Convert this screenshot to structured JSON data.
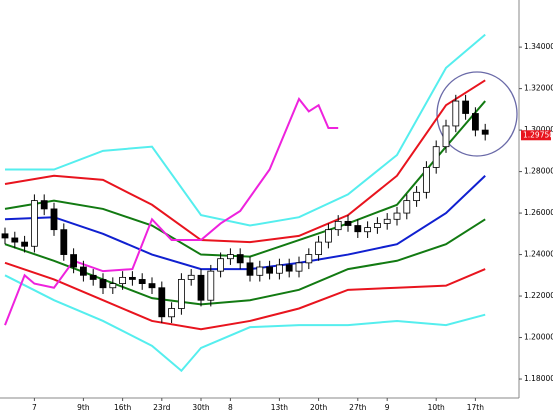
{
  "chart_data": {
    "type": "candlestick",
    "categories": [
      null,
      null,
      null,
      "7",
      null,
      null,
      null,
      null,
      "9th",
      null,
      null,
      null,
      "16th",
      null,
      null,
      null,
      "23rd",
      null,
      null,
      null,
      "30th",
      null,
      null,
      "8",
      null,
      null,
      null,
      null,
      "13th",
      null,
      null,
      null,
      "20th",
      null,
      null,
      null,
      "27th",
      null,
      null,
      "9",
      null,
      null,
      null,
      null,
      "10th",
      null,
      null,
      null,
      "17th",
      null
    ],
    "open": [
      1.25,
      1.248,
      1.246,
      1.244,
      1.266,
      1.262,
      1.252,
      1.24,
      1.234,
      1.23,
      1.228,
      1.224,
      1.226,
      1.229,
      1.228,
      1.226,
      1.224,
      1.21,
      1.214,
      1.228,
      1.23,
      1.218,
      1.232,
      1.238,
      1.24,
      1.236,
      1.23,
      1.234,
      1.231,
      1.235,
      1.232,
      1.236,
      1.24,
      1.246,
      1.252,
      1.256,
      1.254,
      1.251,
      1.253,
      1.255,
      1.257,
      1.26,
      1.266,
      1.27,
      1.282,
      1.292,
      1.302,
      1.314,
      1.308,
      1.3
    ],
    "high": [
      1.253,
      1.251,
      1.249,
      1.269,
      1.269,
      1.265,
      1.255,
      1.243,
      1.237,
      1.233,
      1.231,
      1.229,
      1.232,
      1.232,
      1.231,
      1.229,
      1.227,
      1.217,
      1.231,
      1.233,
      1.233,
      1.235,
      1.241,
      1.243,
      1.243,
      1.239,
      1.237,
      1.237,
      1.238,
      1.238,
      1.239,
      1.243,
      1.249,
      1.255,
      1.259,
      1.259,
      1.257,
      1.256,
      1.258,
      1.26,
      1.263,
      1.269,
      1.273,
      1.285,
      1.295,
      1.305,
      1.317,
      1.317,
      1.311,
      1.303
    ],
    "low": [
      1.245,
      1.243,
      1.241,
      1.241,
      1.259,
      1.249,
      1.237,
      1.231,
      1.227,
      1.225,
      1.221,
      1.221,
      1.223,
      1.225,
      1.223,
      1.221,
      1.207,
      1.207,
      1.211,
      1.225,
      1.215,
      1.215,
      1.229,
      1.235,
      1.233,
      1.227,
      1.227,
      1.228,
      1.228,
      1.229,
      1.229,
      1.233,
      1.237,
      1.243,
      1.249,
      1.251,
      1.248,
      1.248,
      1.25,
      1.252,
      1.254,
      1.257,
      1.263,
      1.267,
      1.279,
      1.289,
      1.299,
      1.305,
      1.297,
      1.295
    ],
    "close": [
      1.248,
      1.246,
      1.244,
      1.266,
      1.262,
      1.252,
      1.24,
      1.234,
      1.23,
      1.228,
      1.224,
      1.226,
      1.229,
      1.228,
      1.226,
      1.224,
      1.21,
      1.214,
      1.228,
      1.23,
      1.218,
      1.232,
      1.238,
      1.24,
      1.236,
      1.23,
      1.234,
      1.231,
      1.235,
      1.232,
      1.236,
      1.24,
      1.246,
      1.252,
      1.256,
      1.254,
      1.251,
      1.253,
      1.255,
      1.257,
      1.26,
      1.266,
      1.27,
      1.282,
      1.292,
      1.302,
      1.314,
      1.308,
      1.3,
      1.298
    ],
    "up_color": "#ffffff",
    "down_color": "#000000",
    "lines": [
      {
        "color": "#55eeee",
        "x": [
          0,
          5,
          10,
          15,
          20,
          25,
          30,
          35,
          40,
          45,
          49
        ],
        "values": [
          1.281,
          1.281,
          1.29,
          1.292,
          1.259,
          1.254,
          1.258,
          1.269,
          1.288,
          1.33,
          1.346
        ]
      },
      {
        "color": "#e8141e",
        "x": [
          0,
          5,
          10,
          15,
          20,
          25,
          30,
          35,
          40,
          45,
          49
        ],
        "values": [
          1.274,
          1.278,
          1.276,
          1.264,
          1.247,
          1.246,
          1.249,
          1.259,
          1.278,
          1.312,
          1.324
        ]
      },
      {
        "color": "#127a12",
        "x": [
          0,
          5,
          10,
          15,
          20,
          25,
          30,
          35,
          40,
          45,
          49
        ],
        "values": [
          1.262,
          1.266,
          1.262,
          1.254,
          1.24,
          1.239,
          1.247,
          1.255,
          1.264,
          1.292,
          1.314
        ]
      },
      {
        "color": "#1020d0",
        "x": [
          0,
          5,
          10,
          15,
          20,
          25,
          30,
          35,
          40,
          45,
          49
        ],
        "values": [
          1.257,
          1.258,
          1.25,
          1.24,
          1.233,
          1.233,
          1.236,
          1.24,
          1.245,
          1.26,
          1.278
        ]
      },
      {
        "color": "#127a12",
        "x": [
          0,
          5,
          10,
          15,
          20,
          25,
          30,
          35,
          40,
          45,
          49
        ],
        "values": [
          1.245,
          1.237,
          1.228,
          1.219,
          1.216,
          1.218,
          1.223,
          1.233,
          1.237,
          1.245,
          1.257
        ]
      },
      {
        "color": "#e8141e",
        "x": [
          0,
          5,
          10,
          15,
          20,
          25,
          30,
          35,
          40,
          45,
          49
        ],
        "values": [
          1.236,
          1.228,
          1.218,
          1.208,
          1.204,
          1.208,
          1.214,
          1.223,
          1.224,
          1.225,
          1.233
        ]
      },
      {
        "color": "#55eeee",
        "x": [
          0,
          5,
          10,
          15,
          18,
          20,
          25,
          30,
          35,
          40,
          45,
          49
        ],
        "values": [
          1.23,
          1.218,
          1.208,
          1.196,
          1.184,
          1.195,
          1.205,
          1.206,
          1.206,
          1.208,
          1.206,
          1.211
        ]
      },
      {
        "color": "#ee22dd",
        "x": [
          0,
          2,
          3,
          5,
          7,
          10,
          13,
          15,
          17,
          20,
          22,
          24,
          27,
          30,
          31,
          32,
          33,
          34
        ],
        "values": [
          1.206,
          1.23,
          1.226,
          1.224,
          1.237,
          1.232,
          1.233,
          1.257,
          1.247,
          1.247,
          1.255,
          1.261,
          1.281,
          1.315,
          1.309,
          1.312,
          1.301,
          1.301
        ]
      }
    ],
    "last_price": {
      "value": 1.2975,
      "label": "1.29750"
    },
    "ylim": [
      1.1723,
      1.3603
    ],
    "yticks": [
      {
        "value": 1.18,
        "label": "1.18000"
      },
      {
        "value": 1.2,
        "label": "1.20000"
      },
      {
        "value": 1.22,
        "label": "1.22000"
      },
      {
        "value": 1.24,
        "label": "1.24000"
      },
      {
        "value": 1.26,
        "label": "1.26000"
      },
      {
        "value": 1.28,
        "label": "1.28000"
      },
      {
        "value": 1.3,
        "label": "1.30000"
      },
      {
        "value": 1.32,
        "label": "1.32000"
      },
      {
        "value": 1.34,
        "label": "1.34000"
      }
    ]
  }
}
